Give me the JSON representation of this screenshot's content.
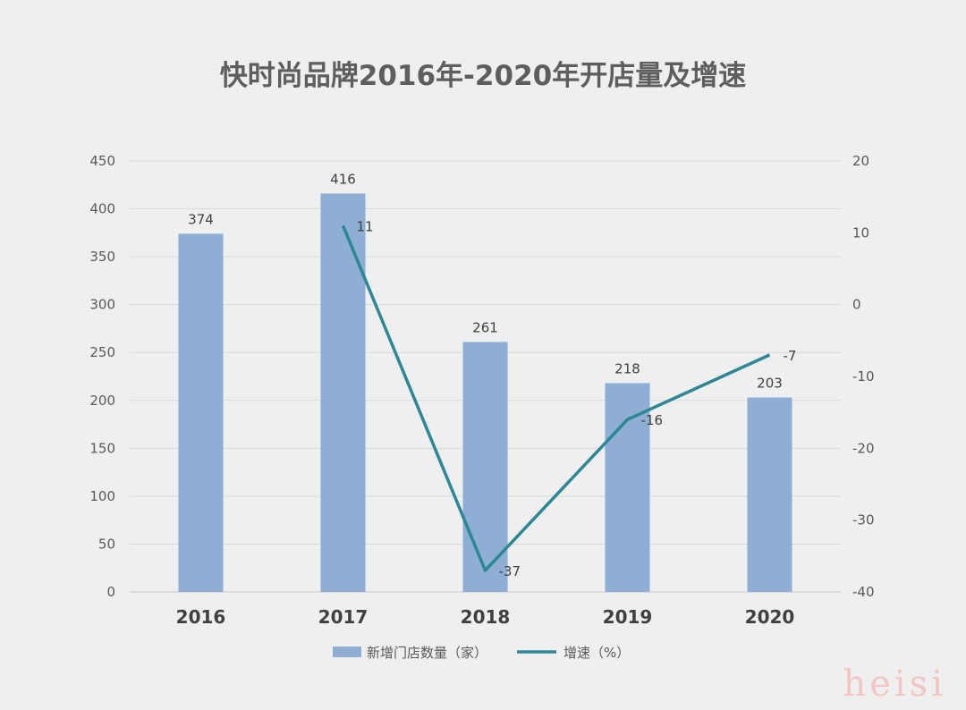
{
  "chart_data": {
    "type": "bar",
    "title": "快时尚品牌2016年-2020年开店量及增速",
    "categories": [
      "2016",
      "2017",
      "2018",
      "2019",
      "2020"
    ],
    "series": [
      {
        "name": "新增门店数量（家）",
        "type": "bar",
        "axis": "left",
        "values": [
          374,
          416,
          261,
          218,
          203
        ],
        "color": "#8eaed3"
      },
      {
        "name": "增速（%）",
        "type": "line",
        "axis": "right",
        "values": [
          null,
          11,
          -37,
          -16,
          -7
        ],
        "color": "#2e8795"
      }
    ],
    "y_left": {
      "min": 0,
      "max": 450,
      "step": 50,
      "ticks": [
        "0",
        "50",
        "100",
        "150",
        "200",
        "250",
        "300",
        "350",
        "400",
        "450"
      ]
    },
    "y_right": {
      "min": -40,
      "max": 20,
      "step": 10,
      "ticks": [
        "-40",
        "-30",
        "-20",
        "-10",
        "0",
        "10",
        "20"
      ]
    },
    "grid": true,
    "legend_position": "bottom"
  },
  "watermark": "heisi"
}
